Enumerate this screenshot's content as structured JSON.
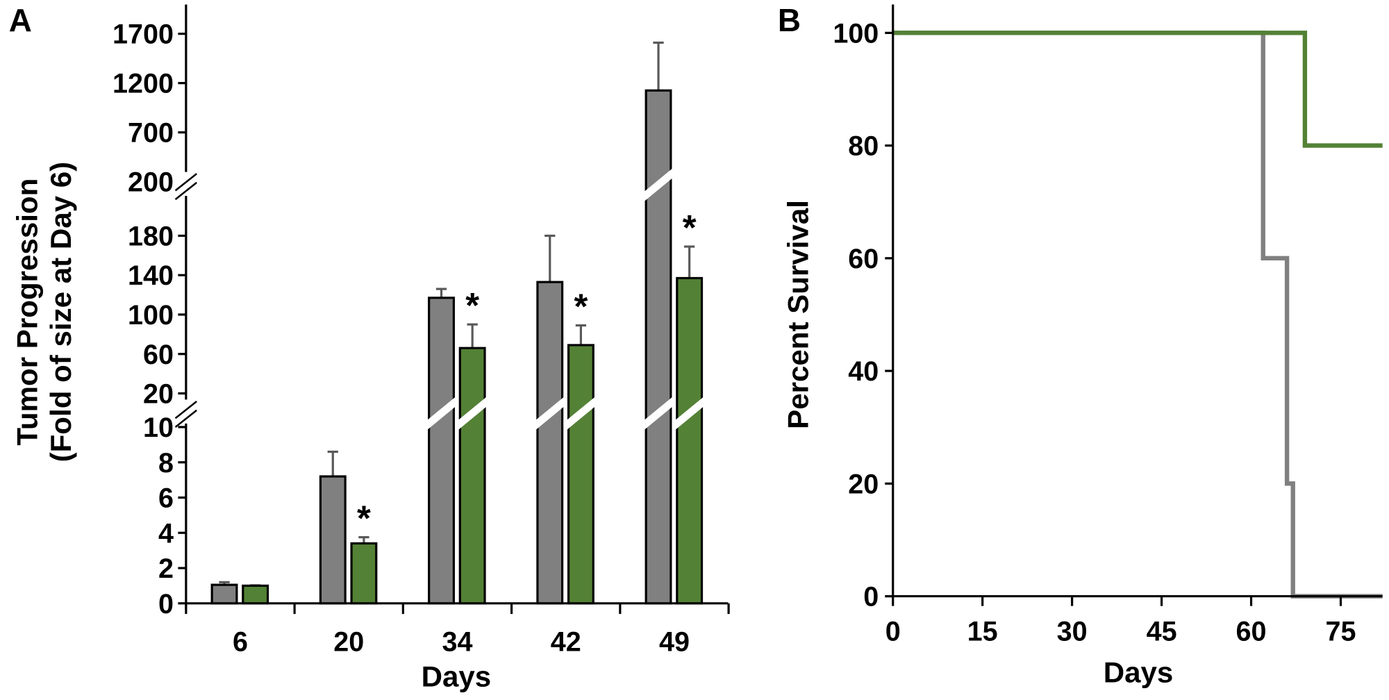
{
  "colors": {
    "control": "#808080",
    "treated": "#538135",
    "axis": "#000000",
    "error": "#595959"
  },
  "chart_data": [
    {
      "panel_label": "A",
      "type": "bar",
      "xlabel": "Days",
      "ylabel": [
        "Tumor Progression",
        "(Fold of size at Day 6)"
      ],
      "categories": [
        "6",
        "20",
        "34",
        "42",
        "49"
      ],
      "y_axis": "broken",
      "y_segments": [
        {
          "range": [
            0,
            10
          ],
          "ticks": [
            "0",
            "2",
            "4",
            "6",
            "8",
            "10"
          ]
        },
        {
          "range": [
            20,
            180
          ],
          "ticks": [
            "20",
            "60",
            "100",
            "140",
            "180"
          ]
        },
        {
          "range": [
            200,
            1700
          ],
          "ticks": [
            "200",
            "700",
            "1200",
            "1700"
          ]
        }
      ],
      "series": [
        {
          "color": "#808080",
          "values": [
            1.05,
            7.2,
            117,
            133,
            1125
          ],
          "error_upper": [
            1.2,
            8.6,
            126,
            180,
            1610
          ]
        },
        {
          "color": "#538135",
          "values": [
            1.0,
            3.4,
            66,
            69,
            137
          ],
          "error_upper": [
            1.02,
            3.75,
            90,
            89,
            169
          ]
        }
      ],
      "significance": [
        "",
        "*",
        "*",
        "*",
        "*"
      ]
    },
    {
      "panel_label": "B",
      "type": "line",
      "step": true,
      "xlabel": "Days",
      "ylabel": "Percent Survival",
      "xlim": [
        0,
        82
      ],
      "ylim": [
        0,
        100
      ],
      "x_ticks": [
        "0",
        "15",
        "30",
        "45",
        "60",
        "75"
      ],
      "y_ticks": [
        "0",
        "20",
        "40",
        "60",
        "80",
        "100"
      ],
      "series": [
        {
          "color": "#808080",
          "points": [
            [
              0,
              100
            ],
            [
              62,
              100
            ],
            [
              62,
              60
            ],
            [
              66,
              60
            ],
            [
              66,
              20
            ],
            [
              67,
              20
            ],
            [
              67,
              0
            ],
            [
              82,
              0
            ]
          ]
        },
        {
          "color": "#538135",
          "points": [
            [
              0,
              100
            ],
            [
              69,
              100
            ],
            [
              69,
              80
            ],
            [
              82,
              80
            ]
          ]
        }
      ]
    }
  ]
}
